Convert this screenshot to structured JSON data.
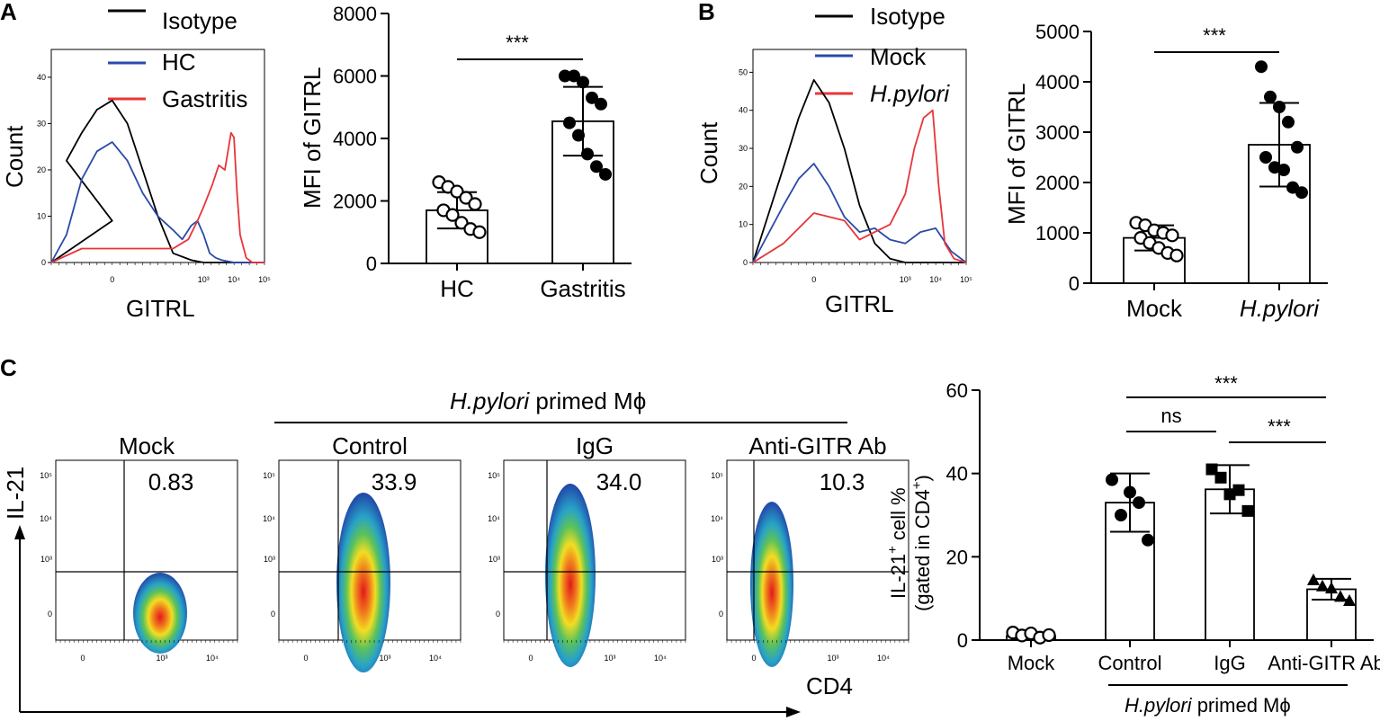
{
  "panels": {
    "a": "A",
    "b": "B",
    "c": "C"
  },
  "colors": {
    "isotype": "#000000",
    "control": "#2a4aa8",
    "treated": "#e8353a"
  },
  "chart_data": [
    {
      "id": "A_hist",
      "type": "line",
      "title": "",
      "xlabel": "GITRL",
      "ylabel": "Count",
      "legend": [
        "Isotype",
        "HC",
        "Gastritis"
      ],
      "yticks": [
        "0",
        "10",
        "20",
        "30",
        "40"
      ],
      "xticks": [
        "0",
        "10³",
        "10⁴",
        "10⁵"
      ],
      "series": [
        {
          "name": "Isotype",
          "x": [
            -2,
            0,
            -1.5,
            -1,
            -0.5,
            0,
            0.5,
            1,
            1.5,
            2,
            2.6,
            3,
            3.6,
            4,
            4.6,
            5
          ],
          "y": [
            0,
            9,
            22,
            28,
            33,
            35,
            30,
            20,
            10,
            2,
            0.5,
            0,
            0,
            0,
            0,
            0
          ]
        },
        {
          "name": "HC",
          "x": [
            -2,
            -1.5,
            -1,
            -0.5,
            0,
            0.5,
            1,
            1.5,
            2,
            2.3,
            2.6,
            2.8,
            3,
            3.2,
            3.4,
            3.6,
            4,
            5
          ],
          "y": [
            0,
            6,
            18,
            24,
            26,
            22,
            15,
            10,
            7,
            5,
            8,
            9,
            6,
            2,
            1,
            0.5,
            0,
            0
          ],
          "note": ""
        },
        {
          "name": "Gastritis",
          "x": [
            -2,
            -1,
            0,
            1,
            1.5,
            2,
            2.5,
            2.8,
            3,
            3.3,
            3.5,
            3.7,
            3.9,
            4,
            4.1,
            4.2,
            4.4,
            4.6,
            5
          ],
          "y": [
            0,
            3,
            3,
            3,
            3,
            3,
            5,
            9,
            12,
            17,
            21,
            20,
            28,
            27,
            15,
            6,
            1,
            0,
            0
          ]
        }
      ]
    },
    {
      "id": "A_bar",
      "type": "bar",
      "title": "",
      "xlabel": "",
      "ylabel": "MFI of GITRL",
      "ylim": [
        0,
        8000
      ],
      "yticks": [
        "0",
        "2000",
        "4000",
        "6000",
        "8000"
      ],
      "categories": [
        "HC",
        "Gastritis"
      ],
      "values": [
        1700,
        4550
      ],
      "sd": [
        580,
        1100
      ],
      "points": [
        [
          2600,
          2450,
          2300,
          2100,
          1900,
          1700,
          1550,
          1300,
          1100,
          1000
        ],
        [
          6000,
          6000,
          5800,
          5300,
          5100,
          4500,
          4100,
          3500,
          3100,
          2850
        ]
      ],
      "significance": "***"
    },
    {
      "id": "B_hist",
      "type": "line",
      "title": "",
      "xlabel": "GITRL",
      "ylabel": "Count",
      "legend": [
        "Isotype",
        "Mock",
        "H.pylori"
      ],
      "yticks": [
        "0",
        "10",
        "20",
        "30",
        "40",
        "50"
      ],
      "xticks": [
        "0",
        "10³",
        "10⁴",
        "10⁵"
      ],
      "series": [
        {
          "name": "Isotype",
          "x": [
            -2,
            -1,
            -0.5,
            0,
            0.5,
            1,
            1.5,
            2,
            2.5,
            3,
            4,
            5
          ],
          "y": [
            0,
            25,
            38,
            48,
            42,
            30,
            15,
            5,
            1,
            0,
            0,
            0
          ]
        },
        {
          "name": "Mock",
          "x": [
            -2,
            -1,
            -0.5,
            0,
            0.5,
            1,
            1.5,
            2,
            2.5,
            3,
            3.5,
            4,
            4.5,
            5
          ],
          "y": [
            0,
            15,
            22,
            26,
            20,
            12,
            8,
            9,
            6,
            5,
            8,
            9,
            3,
            0
          ]
        },
        {
          "name": "H.pylori",
          "x": [
            -2,
            -1,
            0,
            1,
            1.5,
            2,
            2.5,
            3,
            3.3,
            3.6,
            3.9,
            4.1,
            4.3,
            4.6,
            5
          ],
          "y": [
            0,
            5,
            13,
            11,
            6,
            8,
            10,
            18,
            30,
            38,
            40,
            20,
            5,
            1,
            0
          ]
        }
      ]
    },
    {
      "id": "B_bar",
      "type": "bar",
      "title": "",
      "xlabel": "",
      "ylabel": "MFI of GITRL",
      "ylim": [
        0,
        5000
      ],
      "yticks": [
        "0",
        "1000",
        "2000",
        "3000",
        "4000",
        "5000"
      ],
      "categories": [
        "Mock",
        "H.pylori"
      ],
      "values": [
        900,
        2750
      ],
      "sd": [
        250,
        830
      ],
      "points": [
        [
          1200,
          1150,
          1050,
          1000,
          950,
          900,
          800,
          700,
          600,
          550
        ],
        [
          4300,
          3700,
          3500,
          3200,
          2700,
          2500,
          2300,
          2250,
          1900,
          1800
        ]
      ],
      "significance": "***"
    },
    {
      "id": "C_flow",
      "type": "scatter",
      "title": "H.pylori primed Mϕ",
      "xlabel": "CD4",
      "ylabel": "IL-21",
      "plots": [
        {
          "label": "Mock",
          "value": "0.83"
        },
        {
          "label": "Control",
          "value": "33.9"
        },
        {
          "label": "IgG",
          "value": "34.0"
        },
        {
          "label": "Anti-GITR Ab",
          "value": "10.3"
        }
      ],
      "yticks": [
        "0",
        "10³",
        "10⁴",
        "10⁵"
      ],
      "xticks": [
        "0",
        "10³",
        "10⁴"
      ]
    },
    {
      "id": "C_bar",
      "type": "bar",
      "title": "",
      "xlabel": "",
      "ylabel": "IL-21⁺ cell %",
      "ylabel2": "(gated in CD4⁺)",
      "ylim": [
        0,
        60
      ],
      "yticks": [
        "0",
        "20",
        "40",
        "60"
      ],
      "categories": [
        "Mock",
        "Control",
        "IgG",
        "Anti-GITR Ab"
      ],
      "values": [
        1,
        33,
        36.2,
        12.2
      ],
      "sd": [
        0.8,
        7,
        5.8,
        2.5
      ],
      "points": [
        [
          1.8,
          1.1,
          1.6,
          0.6,
          1.2
        ],
        [
          38.5,
          30,
          35.5,
          33,
          24
        ],
        [
          41,
          39,
          35,
          36,
          31
        ],
        [
          14.5,
          13,
          12.5,
          10.5,
          9.5
        ]
      ],
      "markers": [
        "open-circle",
        "circle",
        "square",
        "triangle"
      ],
      "group_label": "H.pylori primed Mϕ",
      "comparisons": [
        {
          "pair": [
            "Control",
            "Anti-GITR Ab"
          ],
          "label": "***"
        },
        {
          "pair": [
            "Control",
            "IgG"
          ],
          "label": "ns"
        },
        {
          "pair": [
            "IgG",
            "Anti-GITR Ab"
          ],
          "label": "***"
        }
      ]
    }
  ]
}
